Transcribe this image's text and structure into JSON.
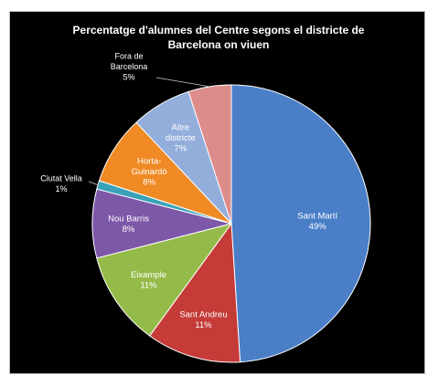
{
  "chart_data": {
    "type": "pie",
    "title_lines": [
      "Percentatge d'alumnes  del Centre segons el districte de",
      "Barcelona on viuen"
    ],
    "slices": [
      {
        "name": "Sant Martí",
        "value": 49,
        "label": "49%",
        "color": "#4a7fc8"
      },
      {
        "name": "Sant Andreu",
        "value": 11,
        "label": "11%",
        "color": "#c43b38"
      },
      {
        "name": "Eixample",
        "value": 11,
        "label": "11%",
        "color": "#94bb4a"
      },
      {
        "name": "Nou Barris",
        "value": 8,
        "label": "8%",
        "color": "#7d58a8"
      },
      {
        "name": "Ciutat Vella",
        "value": 1,
        "label": "1%",
        "color": "#3aa2b8"
      },
      {
        "name": "Horta-Guinardó",
        "value": 8,
        "label": "8%",
        "color": "#f08a24"
      },
      {
        "name": "Altre districte",
        "value": 7,
        "label": "7%",
        "color": "#94aedc"
      },
      {
        "name": "Fora de Barcelona",
        "value": 5,
        "label": "5%",
        "color": "#dc8d8b"
      }
    ],
    "label_lines": [
      [
        "Sant Martí",
        "49%"
      ],
      [
        "Sant Andreu",
        "11%"
      ],
      [
        "Eixample",
        "11%"
      ],
      [
        "Nou Barris",
        "8%"
      ],
      [
        "Ciutat Vella",
        "1%"
      ],
      [
        "Horta-",
        "Guinardó",
        "8%"
      ],
      [
        "Altre",
        "districte",
        "7%"
      ],
      [
        "Fora de",
        "Barcelona",
        "5%"
      ]
    ],
    "legend": "none"
  }
}
